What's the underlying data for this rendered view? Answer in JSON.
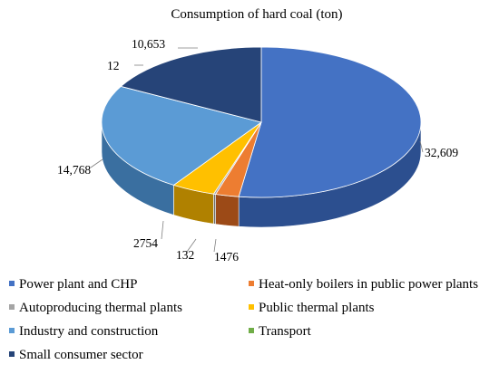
{
  "chart_data": {
    "type": "pie",
    "title": "Consumption of hard coal (ton)",
    "style": "3d-exploded-none",
    "slices": [
      {
        "label": "Power plant and CHP",
        "value": 32609,
        "display": "32,609",
        "color": "#4472c4",
        "side": "#2c4f8f"
      },
      {
        "label": "Heat-only boilers in public power plants",
        "value": 1476,
        "display": "1476",
        "color": "#ed7d31",
        "side": "#9c4a17"
      },
      {
        "label": "Autoproducing thermal plants",
        "value": 132,
        "display": "132",
        "color": "#a5a5a5",
        "side": "#6e6e6e"
      },
      {
        "label": "Public thermal plants",
        "value": 2754,
        "display": "2754",
        "color": "#ffc000",
        "side": "#b08100"
      },
      {
        "label": "Industry and construction",
        "value": 14768,
        "display": "14,768",
        "color": "#5b9bd5",
        "side": "#3a6fa0"
      },
      {
        "label": "Transport",
        "value": 12,
        "display": "12",
        "color": "#70ad47",
        "side": "#4d7a30"
      },
      {
        "label": "Small consumer sector",
        "value": 10653,
        "display": "10,653",
        "color": "#264478",
        "side": "#162a4e"
      }
    ],
    "legend_position": "bottom"
  }
}
